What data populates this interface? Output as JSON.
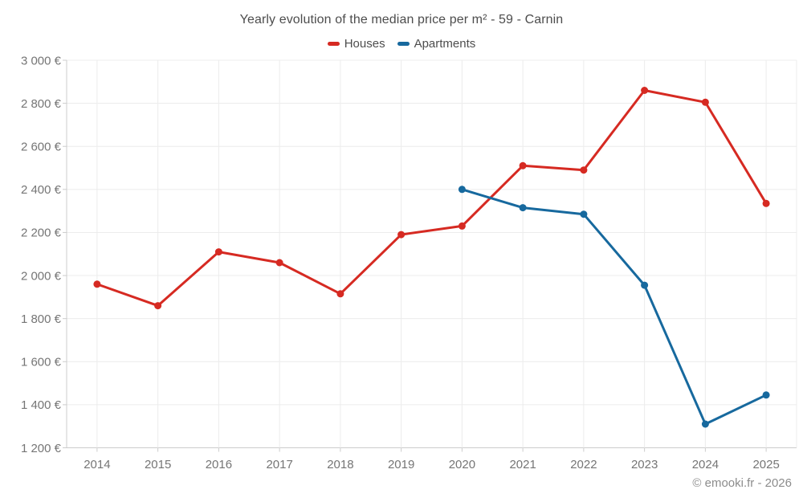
{
  "header": {
    "title": "Yearly evolution of the median price per m² - 59 - Carnin"
  },
  "footer": {
    "copyright": "© emooki.fr - 2026"
  },
  "colors": {
    "houses": "#d62a22",
    "apartments": "#17699e",
    "gridline": "#ececec",
    "axis_line": "#cccccc",
    "tick_label": "#757575",
    "title_text": "#4d4d4d",
    "footer_text": "#8c8c8c"
  },
  "chart_data": {
    "type": "line",
    "title": "Yearly evolution of the median price per m² - 59 - Carnin",
    "categories": [
      "2014",
      "2015",
      "2016",
      "2017",
      "2018",
      "2019",
      "2020",
      "2021",
      "2022",
      "2023",
      "2024",
      "2025"
    ],
    "series": [
      {
        "name": "Houses",
        "color": "#d62a22",
        "values": [
          1960,
          1860,
          2110,
          2060,
          1915,
          2190,
          2230,
          2510,
          2490,
          2860,
          2805,
          2335
        ]
      },
      {
        "name": "Apartments",
        "color": "#17699e",
        "values": [
          null,
          null,
          null,
          null,
          null,
          null,
          2400,
          2315,
          2285,
          1955,
          1310,
          1445
        ]
      }
    ],
    "xlabel": "",
    "ylabel": "",
    "y_axis": {
      "min": 1200,
      "max": 3000,
      "step": 200,
      "unit": "€",
      "format": "french-thousands-space"
    },
    "ylim": [
      1200,
      3000
    ],
    "grid": true,
    "legend_position": "top",
    "legend": [
      "Houses",
      "Apartments"
    ]
  }
}
